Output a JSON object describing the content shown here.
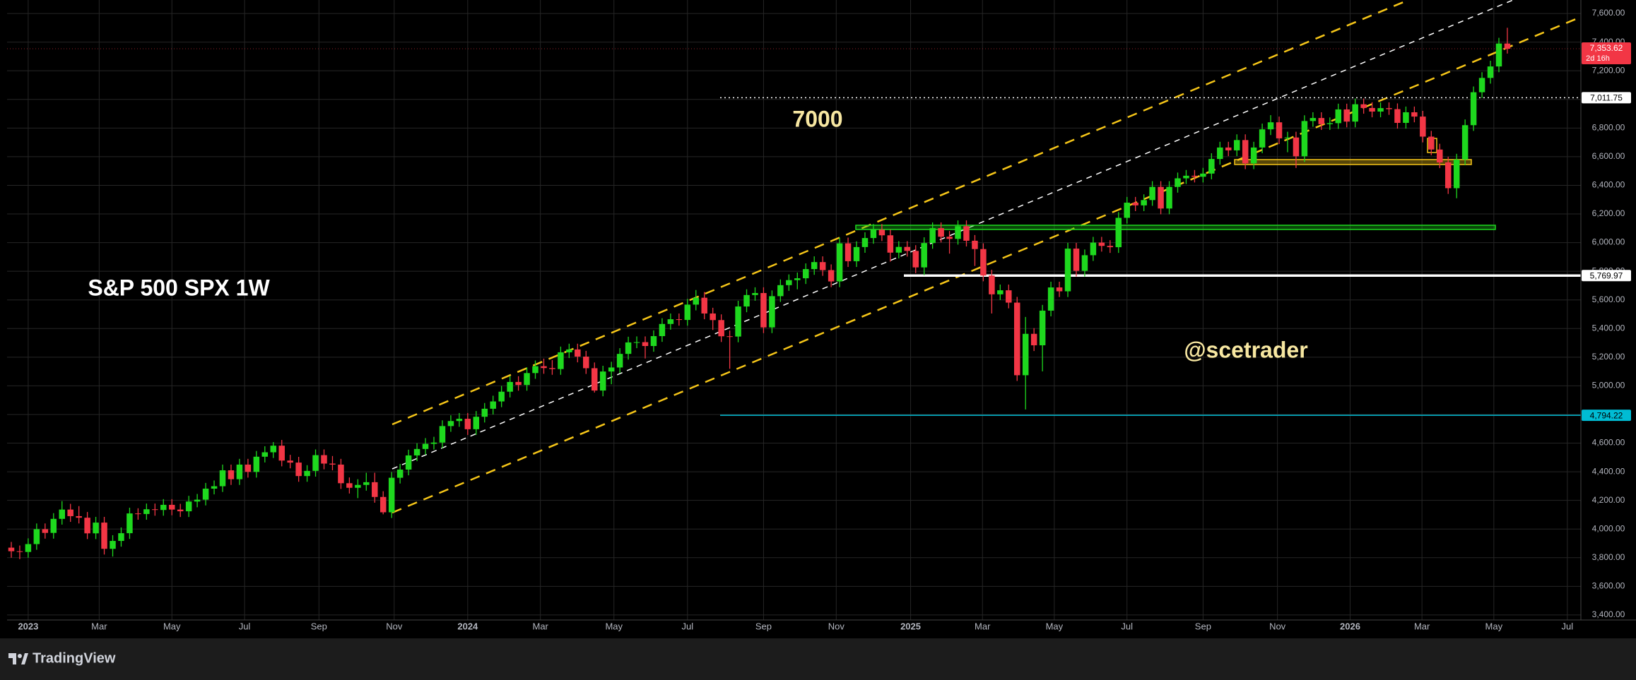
{
  "chart_data": {
    "type": "candlestick",
    "title": "S&P 500 SPX 1W",
    "annotations": [
      "7000",
      "@scetrader"
    ],
    "up_color": "#1ed81e",
    "down_color": "#f23645",
    "grid": true,
    "ylim": [
      3365,
      7694
    ],
    "yticks": [
      {
        "value": 3400,
        "label": "3,400.00"
      },
      {
        "value": 3600,
        "label": "3,600.00"
      },
      {
        "value": 3800,
        "label": "3,800.00"
      },
      {
        "value": 4000,
        "label": "4,000.00"
      },
      {
        "value": 4200,
        "label": "4,200.00"
      },
      {
        "value": 4400,
        "label": "4,400.00"
      },
      {
        "value": 4600,
        "label": "4,600.00"
      },
      {
        "value": 4800,
        "label": "4,800.00"
      },
      {
        "value": 5000,
        "label": "5,000.00"
      },
      {
        "value": 5200,
        "label": "5,200.00"
      },
      {
        "value": 5400,
        "label": "5,400.00"
      },
      {
        "value": 5600,
        "label": "5,600.00"
      },
      {
        "value": 5800,
        "label": "5,800.00"
      },
      {
        "value": 6000,
        "label": "6,000.00"
      },
      {
        "value": 6200,
        "label": "6,200.00"
      },
      {
        "value": 6400,
        "label": "6,400.00"
      },
      {
        "value": 6600,
        "label": "6,600.00"
      },
      {
        "value": 6800,
        "label": "6,800.00"
      },
      {
        "value": 7000,
        "label": "7,000.00"
      },
      {
        "value": 7200,
        "label": "7,200.00"
      },
      {
        "value": 7400,
        "label": "7,400.00"
      },
      {
        "value": 7600,
        "label": "7,600.00"
      }
    ],
    "xlim": [
      -0.5,
      185.7
    ],
    "xticks": [
      {
        "value": 2,
        "label": "2023"
      },
      {
        "value": 10.4,
        "label": "Mar"
      },
      {
        "value": 19,
        "label": "May"
      },
      {
        "value": 27.6,
        "label": "Jul"
      },
      {
        "value": 36.4,
        "label": "Sep"
      },
      {
        "value": 45.3,
        "label": "Nov"
      },
      {
        "value": 54,
        "label": "2024"
      },
      {
        "value": 62.6,
        "label": "Mar"
      },
      {
        "value": 71.3,
        "label": "May"
      },
      {
        "value": 80,
        "label": "Jul"
      },
      {
        "value": 89,
        "label": "Sep"
      },
      {
        "value": 97.6,
        "label": "Nov"
      },
      {
        "value": 106.4,
        "label": "2025"
      },
      {
        "value": 114.9,
        "label": "Mar"
      },
      {
        "value": 123.4,
        "label": "May"
      },
      {
        "value": 132,
        "label": "Jul"
      },
      {
        "value": 141,
        "label": "Sep"
      },
      {
        "value": 149.8,
        "label": "Nov"
      },
      {
        "value": 158.4,
        "label": "2026"
      },
      {
        "value": 166.9,
        "label": "Mar"
      },
      {
        "value": 175.4,
        "label": "May"
      },
      {
        "value": 184.1,
        "label": "Jul"
      }
    ],
    "candles": [
      [
        3870,
        3910,
        3800,
        3845
      ],
      [
        3845,
        3885,
        3790,
        3840
      ],
      [
        3840,
        3935,
        3800,
        3895
      ],
      [
        3895,
        4039,
        3855,
        3999
      ],
      [
        3999,
        4039,
        3933,
        3973
      ],
      [
        3973,
        4111,
        3933,
        4071
      ],
      [
        4071,
        4195,
        4031,
        4136
      ],
      [
        4136,
        4176,
        4050,
        4090
      ],
      [
        4090,
        4160,
        4039,
        4079
      ],
      [
        4079,
        4119,
        3930,
        3970
      ],
      [
        3970,
        4085,
        3930,
        4045
      ],
      [
        4045,
        4085,
        3822,
        3862
      ],
      [
        3862,
        3957,
        3808,
        3917
      ],
      [
        3917,
        4011,
        3877,
        3971
      ],
      [
        3971,
        4149,
        3931,
        4109
      ],
      [
        4109,
        4145,
        4065,
        4105
      ],
      [
        4105,
        4178,
        4065,
        4138
      ],
      [
        4138,
        4178,
        4093,
        4133
      ],
      [
        4133,
        4209,
        4093,
        4169
      ],
      [
        4169,
        4209,
        4096,
        4136
      ],
      [
        4136,
        4176,
        4084,
        4124
      ],
      [
        4124,
        4232,
        4084,
        4192
      ],
      [
        4192,
        4245,
        4152,
        4205
      ],
      [
        4205,
        4322,
        4165,
        4282
      ],
      [
        4282,
        4339,
        4242,
        4299
      ],
      [
        4299,
        4450,
        4259,
        4410
      ],
      [
        4410,
        4450,
        4308,
        4348
      ],
      [
        4348,
        4490,
        4308,
        4450
      ],
      [
        4450,
        4490,
        4359,
        4399
      ],
      [
        4399,
        4545,
        4359,
        4505
      ],
      [
        4505,
        4578,
        4465,
        4536
      ],
      [
        4536,
        4607,
        4496,
        4582
      ],
      [
        4582,
        4622,
        4438,
        4478
      ],
      [
        4478,
        4518,
        4424,
        4464
      ],
      [
        4464,
        4504,
        4330,
        4370
      ],
      [
        4370,
        4446,
        4330,
        4406
      ],
      [
        4406,
        4556,
        4366,
        4516
      ],
      [
        4516,
        4556,
        4417,
        4457
      ],
      [
        4457,
        4510,
        4410,
        4450
      ],
      [
        4450,
        4490,
        4280,
        4320
      ],
      [
        4320,
        4360,
        4248,
        4288
      ],
      [
        4288,
        4348,
        4216,
        4308
      ],
      [
        4308,
        4393,
        4268,
        4327
      ],
      [
        4327,
        4393,
        4184,
        4224
      ],
      [
        4224,
        4264,
        4103,
        4117
      ],
      [
        4117,
        4398,
        4077,
        4358
      ],
      [
        4358,
        4455,
        4318,
        4415
      ],
      [
        4415,
        4554,
        4375,
        4514
      ],
      [
        4514,
        4599,
        4474,
        4559
      ],
      [
        4559,
        4635,
        4519,
        4595
      ],
      [
        4595,
        4644,
        4555,
        4604
      ],
      [
        4604,
        4759,
        4564,
        4719
      ],
      [
        4719,
        4794,
        4679,
        4754
      ],
      [
        4754,
        4810,
        4714,
        4770
      ],
      [
        4770,
        4810,
        4657,
        4697
      ],
      [
        4697,
        4824,
        4657,
        4784
      ],
      [
        4784,
        4880,
        4744,
        4840
      ],
      [
        4840,
        4931,
        4800,
        4891
      ],
      [
        4891,
        4999,
        4851,
        4959
      ],
      [
        4959,
        5067,
        4919,
        5027
      ],
      [
        5027,
        5067,
        4966,
        5006
      ],
      [
        5006,
        5129,
        4966,
        5089
      ],
      [
        5089,
        5177,
        5049,
        5137
      ],
      [
        5137,
        5190,
        5084,
        5124
      ],
      [
        5124,
        5180,
        5077,
        5117
      ],
      [
        5117,
        5274,
        5077,
        5234
      ],
      [
        5234,
        5294,
        5194,
        5254
      ],
      [
        5254,
        5294,
        5164,
        5204
      ],
      [
        5204,
        5244,
        5083,
        5123
      ],
      [
        5123,
        5163,
        4953,
        4967
      ],
      [
        4967,
        5140,
        4927,
        5100
      ],
      [
        5100,
        5168,
        5011,
        5128
      ],
      [
        5128,
        5263,
        5088,
        5223
      ],
      [
        5223,
        5343,
        5183,
        5303
      ],
      [
        5303,
        5345,
        5263,
        5305
      ],
      [
        5305,
        5345,
        5191,
        5278
      ],
      [
        5278,
        5387,
        5238,
        5347
      ],
      [
        5347,
        5472,
        5307,
        5432
      ],
      [
        5432,
        5505,
        5392,
        5465
      ],
      [
        5465,
        5505,
        5420,
        5460
      ],
      [
        5460,
        5607,
        5420,
        5567
      ],
      [
        5567,
        5669,
        5527,
        5615
      ],
      [
        5615,
        5655,
        5465,
        5505
      ],
      [
        5505,
        5545,
        5390,
        5459
      ],
      [
        5459,
        5499,
        5306,
        5346
      ],
      [
        5346,
        5386,
        5119,
        5344
      ],
      [
        5344,
        5594,
        5304,
        5554
      ],
      [
        5554,
        5674,
        5514,
        5634
      ],
      [
        5634,
        5688,
        5594,
        5648
      ],
      [
        5648,
        5688,
        5368,
        5408
      ],
      [
        5408,
        5666,
        5368,
        5626
      ],
      [
        5626,
        5743,
        5586,
        5703
      ],
      [
        5703,
        5778,
        5663,
        5738
      ],
      [
        5738,
        5791,
        5674,
        5751
      ],
      [
        5751,
        5855,
        5711,
        5815
      ],
      [
        5815,
        5904,
        5775,
        5864
      ],
      [
        5864,
        5904,
        5768,
        5808
      ],
      [
        5808,
        5848,
        5689,
        5729
      ],
      [
        5729,
        6035,
        5689,
        5995
      ],
      [
        5995,
        6035,
        5830,
        5870
      ],
      [
        5870,
        6009,
        5830,
        5969
      ],
      [
        5969,
        6072,
        5929,
        6032
      ],
      [
        6032,
        6130,
        5992,
        6090
      ],
      [
        6090,
        6130,
        6011,
        6051
      ],
      [
        6051,
        6091,
        5867,
        5930
      ],
      [
        5930,
        6010,
        5890,
        5970
      ],
      [
        5970,
        6010,
        5902,
        5942
      ],
      [
        5942,
        5982,
        5787,
        5827
      ],
      [
        5827,
        6037,
        5773,
        5997
      ],
      [
        5997,
        6141,
        5957,
        6101
      ],
      [
        6101,
        6141,
        6001,
        6041
      ],
      [
        6041,
        6081,
        5923,
        6026
      ],
      [
        6026,
        6155,
        5986,
        6115
      ],
      [
        6115,
        6155,
        5973,
        6013
      ],
      [
        6013,
        6053,
        5837,
        5955
      ],
      [
        5955,
        5995,
        5730,
        5770
      ],
      [
        5770,
        5810,
        5505,
        5639
      ],
      [
        5639,
        5707,
        5599,
        5667
      ],
      [
        5667,
        5707,
        5541,
        5581
      ],
      [
        5581,
        5621,
        5034,
        5074
      ],
      [
        5074,
        5481,
        4835,
        5363
      ],
      [
        5363,
        5403,
        5243,
        5283
      ],
      [
        5283,
        5565,
        5101,
        5525
      ],
      [
        5525,
        5727,
        5485,
        5687
      ],
      [
        5687,
        5727,
        5620,
        5660
      ],
      [
        5660,
        5998,
        5620,
        5958
      ],
      [
        5958,
        5998,
        5763,
        5803
      ],
      [
        5803,
        5952,
        5763,
        5912
      ],
      [
        5912,
        6040,
        5872,
        6000
      ],
      [
        6000,
        6040,
        5937,
        5977
      ],
      [
        5977,
        6017,
        5928,
        5968
      ],
      [
        5968,
        6213,
        5928,
        6173
      ],
      [
        6173,
        6319,
        6133,
        6279
      ],
      [
        6279,
        6319,
        6220,
        6260
      ],
      [
        6260,
        6337,
        6220,
        6297
      ],
      [
        6297,
        6429,
        6257,
        6389
      ],
      [
        6389,
        6429,
        6198,
        6238
      ],
      [
        6238,
        6429,
        6198,
        6389
      ],
      [
        6389,
        6489,
        6349,
        6449
      ],
      [
        6449,
        6507,
        6409,
        6467
      ],
      [
        6467,
        6507,
        6420,
        6460
      ],
      [
        6460,
        6522,
        6420,
        6482
      ],
      [
        6482,
        6624,
        6442,
        6584
      ],
      [
        6584,
        6704,
        6544,
        6664
      ],
      [
        6664,
        6704,
        6604,
        6644
      ],
      [
        6644,
        6756,
        6604,
        6716
      ],
      [
        6716,
        6756,
        6513,
        6553
      ],
      [
        6553,
        6704,
        6513,
        6664
      ],
      [
        6664,
        6831,
        6624,
        6791
      ],
      [
        6791,
        6890,
        6751,
        6840
      ],
      [
        6840,
        6880,
        6688,
        6728
      ],
      [
        6728,
        6774,
        6631,
        6734
      ],
      [
        6734,
        6774,
        6521,
        6603
      ],
      [
        6603,
        6889,
        6563,
        6849
      ],
      [
        6849,
        6910,
        6809,
        6870
      ],
      [
        6870,
        6910,
        6787,
        6827
      ],
      [
        6827,
        6874,
        6787,
        6834
      ],
      [
        6834,
        6970,
        6794,
        6930
      ],
      [
        6930,
        6970,
        6805,
        6845
      ],
      [
        6845,
        7006,
        6805,
        6966
      ],
      [
        6966,
        7006,
        6900,
        6940
      ],
      [
        6940,
        6980,
        6875,
        6915
      ],
      [
        6915,
        6979,
        6875,
        6939
      ],
      [
        6939,
        6979,
        6892,
        6932
      ],
      [
        6932,
        6972,
        6796,
        6836
      ],
      [
        6836,
        6950,
        6796,
        6910
      ],
      [
        6910,
        6950,
        6840,
        6880
      ],
      [
        6880,
        6920,
        6700,
        6740
      ],
      [
        6740,
        6780,
        6610,
        6650
      ],
      [
        6650,
        6690,
        6520,
        6560
      ],
      [
        6560,
        6600,
        6340,
        6380
      ],
      [
        6380,
        6620,
        6310,
        6580
      ],
      [
        6580,
        6860,
        6540,
        6820
      ],
      [
        6820,
        7090,
        6780,
        7050
      ],
      [
        7050,
        7190,
        7010,
        7150
      ],
      [
        7150,
        7270,
        7110,
        7230
      ],
      [
        7230,
        7430,
        7190,
        7390
      ],
      [
        7390,
        7500,
        7320,
        7353.62
      ]
    ],
    "last_price": {
      "value": 7353.62,
      "label": "7,353.62"
    },
    "countdown": "2d 16h",
    "levels": [
      {
        "value": 7011.75,
        "label": "7,011.75",
        "color": "#ffffff",
        "style": "dotted"
      },
      {
        "value": 5769.97,
        "label": "5,769.97",
        "color": "#ffffff",
        "style": "solid"
      },
      {
        "value": 4794.22,
        "label": "4,794.22",
        "color": "#00bcd4",
        "style": "solid"
      }
    ]
  },
  "footer": {
    "brand": "TradingView"
  }
}
